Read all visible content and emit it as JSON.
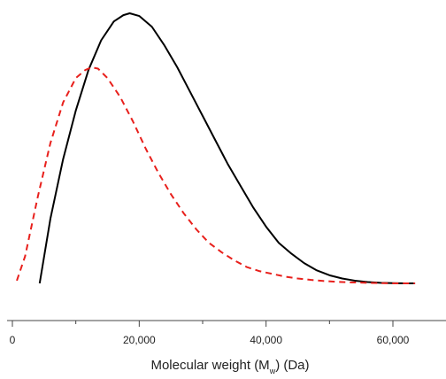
{
  "chart_data": {
    "type": "line",
    "title": "",
    "xlabel": "Molecular weight (M_w) (Da)",
    "xlabel_parts": {
      "prefix": "Molecular weight (M",
      "subscript": "w",
      "suffix": ") (Da)"
    },
    "ylabel": "",
    "xlim": [
      -2000,
      70000
    ],
    "ylim": [
      0,
      1.0
    ],
    "x_ticks": [
      0,
      20000,
      40000,
      60000
    ],
    "x_tick_labels": [
      "0",
      "20,000",
      "40,000",
      "60,000"
    ],
    "y_axis_visible": false,
    "grid": false,
    "legend": "none",
    "series": [
      {
        "color": "#000000",
        "line_style": "solid",
        "x": [
          4300,
          6000,
          8000,
          10000,
          12000,
          14000,
          16000,
          17500,
          18500,
          20000,
          22000,
          24000,
          26000,
          28000,
          30000,
          32000,
          34000,
          36000,
          38000,
          40000,
          42000,
          44000,
          46000,
          48000,
          50000,
          52000,
          54000,
          56000,
          58000,
          60000,
          62000,
          63500
        ],
        "y": [
          0.0,
          0.24,
          0.46,
          0.64,
          0.79,
          0.9,
          0.97,
          0.993,
          1.0,
          0.99,
          0.95,
          0.88,
          0.8,
          0.71,
          0.62,
          0.53,
          0.44,
          0.36,
          0.28,
          0.21,
          0.15,
          0.11,
          0.075,
          0.048,
          0.03,
          0.018,
          0.01,
          0.005,
          0.002,
          0.001,
          0.0,
          0.0
        ]
      },
      {
        "color": "#e8201c",
        "line_style": "dashed",
        "x": [
          700,
          2000,
          4000,
          6000,
          8000,
          10000,
          11500,
          12500,
          13500,
          15000,
          17000,
          19000,
          21000,
          23000,
          25000,
          27000,
          29000,
          31000,
          33000,
          35000,
          37000,
          39000,
          41000,
          43000,
          45000,
          47000,
          49000,
          51000,
          53000,
          56000,
          60000,
          63500
        ],
        "y": [
          0.01,
          0.1,
          0.32,
          0.52,
          0.67,
          0.76,
          0.79,
          0.8,
          0.795,
          0.76,
          0.69,
          0.6,
          0.5,
          0.41,
          0.33,
          0.26,
          0.2,
          0.15,
          0.115,
          0.085,
          0.06,
          0.045,
          0.035,
          0.025,
          0.018,
          0.013,
          0.009,
          0.006,
          0.004,
          0.002,
          0.0,
          0.0
        ]
      }
    ]
  }
}
